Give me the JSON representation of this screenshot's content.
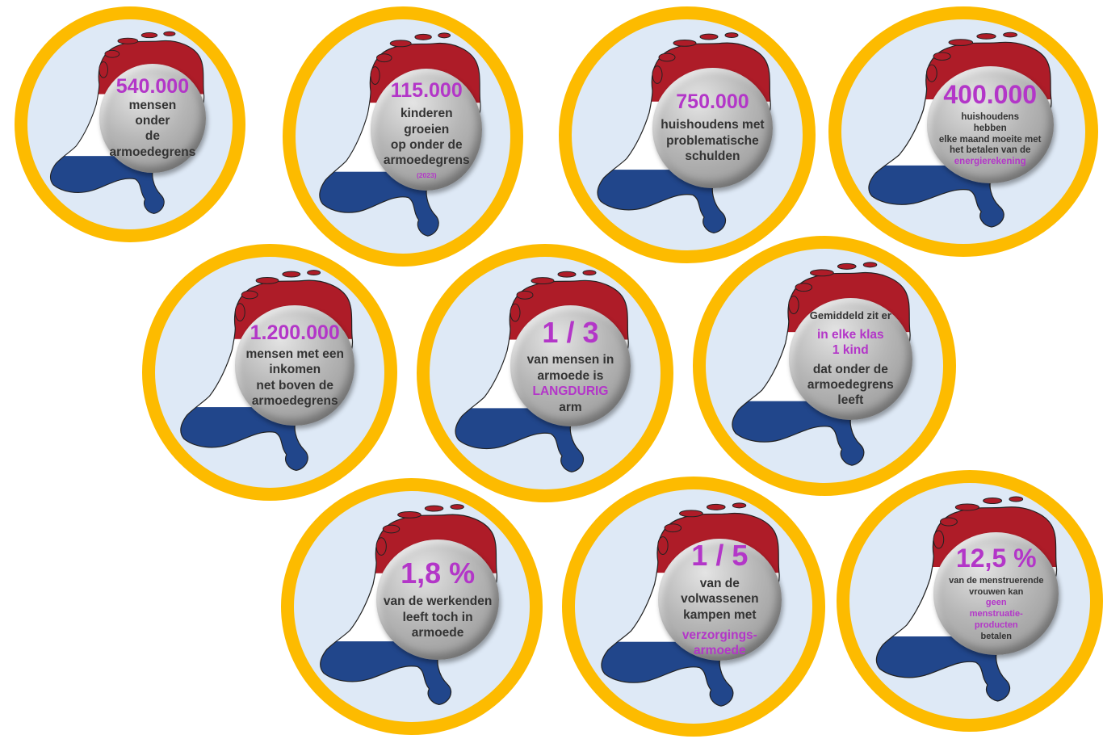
{
  "colors": {
    "ring": "#FDBB00",
    "background": "#DEE9F6",
    "flag_red": "#AE1C28",
    "flag_white": "#FFFFFF",
    "flag_blue": "#21468B",
    "accent": "#B336C8",
    "text": "#333333"
  },
  "map_icon": "netherlands-flag-map",
  "badges": [
    {
      "number": "540.000",
      "lines": [
        "mensen",
        "onder",
        "de",
        "armoedegrens"
      ]
    },
    {
      "number": "115.000",
      "lines": [
        "kinderen groeien",
        "op onder de",
        "armoedegrens"
      ],
      "note": "(2023)"
    },
    {
      "number": "750.000",
      "lines": [
        "huishoudens met",
        "problematische",
        "schulden"
      ]
    },
    {
      "number": "400.000",
      "lines": [
        "huishoudens",
        "hebben",
        "elke maand moeite met",
        "het betalen van de"
      ],
      "highlight": "energierekening"
    },
    {
      "number": "1.200.000",
      "lines": [
        "mensen met een",
        "inkomen",
        "net boven de",
        "armoedegrens"
      ]
    },
    {
      "number": "1 / 3",
      "lines": [
        "van mensen in",
        "armoede is"
      ],
      "highlight": "LANGDURIG",
      "after": "arm"
    },
    {
      "intro": "Gemiddeld zit er",
      "highlight_lines": [
        "in elke klas",
        "1 kind"
      ],
      "lines": [
        "dat onder de",
        "armoedegrens",
        "leeft"
      ]
    },
    {
      "number": "1,8 %",
      "lines": [
        "van de werkenden",
        "leeft toch in",
        "armoede"
      ]
    },
    {
      "number": "1 / 5",
      "lines": [
        "van de volwassenen",
        "kampen met"
      ],
      "highlight_lines": [
        "verzorgings-",
        "armoede"
      ]
    },
    {
      "number": "12,5 %",
      "lines": [
        "van de menstruerende",
        "vrouwen kan"
      ],
      "highlight_lines": [
        "geen",
        "menstruatie-",
        "producten"
      ],
      "after": "betalen"
    }
  ]
}
